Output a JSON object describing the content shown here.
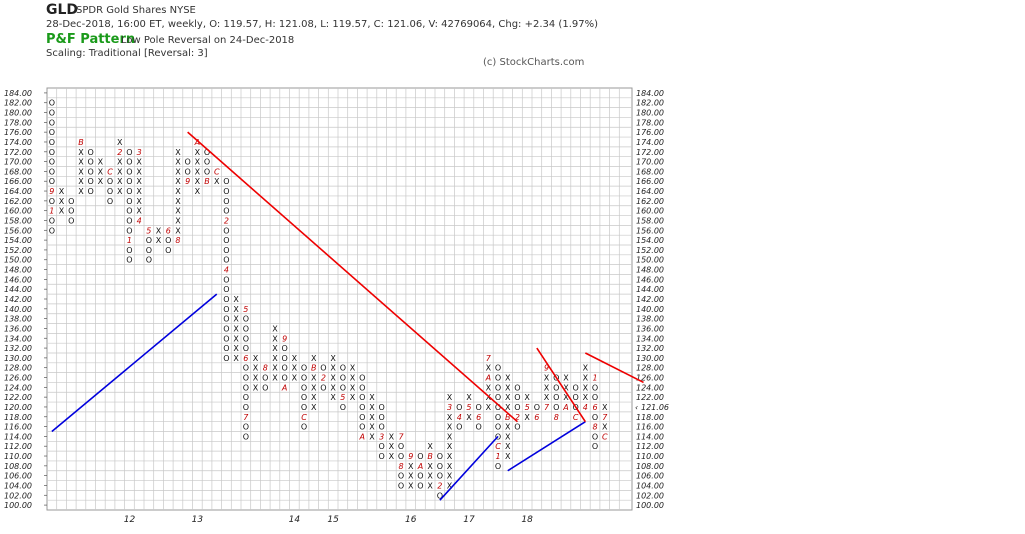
{
  "header": {
    "symbol": "GLD",
    "name": "SPDR Gold Shares  NYSE",
    "quote": "28-Dec-2018, 16:00 ET, weekly, O: 119.57, H: 121.08, L: 119.57, C: 121.06, V: 42769064, Chg: +2.34 (1.97%)",
    "pattern_title": "P&F Pattern",
    "pattern_signal": "Low Pole Reversal on 24-Dec-2018",
    "scaling": "Scaling: Traditional [Reversal: 3]",
    "copyright": "(c) StockCharts.com"
  },
  "chart_data": {
    "type": "point-and-figure",
    "title": "GLD",
    "box_size": 2,
    "reversal": 3,
    "ylim": [
      100,
      184
    ],
    "y_ticks": [
      100,
      102,
      104,
      106,
      108,
      110,
      112,
      114,
      116,
      118,
      120,
      122,
      124,
      126,
      128,
      130,
      132,
      134,
      136,
      138,
      140,
      142,
      144,
      146,
      148,
      150,
      152,
      154,
      156,
      158,
      160,
      162,
      164,
      166,
      168,
      170,
      172,
      174,
      176,
      178,
      180,
      182,
      184
    ],
    "current_price_label": "121.06",
    "current_price_left": "120.00",
    "year_labels": [
      {
        "label": "12",
        "col": 8
      },
      {
        "label": "13",
        "col": 15
      },
      {
        "label": "14",
        "col": 25
      },
      {
        "label": "15",
        "col": 29
      },
      {
        "label": "16",
        "col": 37
      },
      {
        "label": "17",
        "col": 43
      },
      {
        "label": "18",
        "col": 49
      }
    ],
    "columns": [
      {
        "type": "O",
        "high": 182,
        "low": 156,
        "marks": [
          {
            "price": 164,
            "label": "9"
          },
          {
            "price": 160,
            "label": "1"
          }
        ]
      },
      {
        "type": "X",
        "high": 164,
        "low": 160,
        "marks": [
          {
            "price": 158,
            "label": "A"
          }
        ]
      },
      {
        "type": "O",
        "high": 162,
        "low": 158,
        "marks": []
      },
      {
        "type": "X",
        "high": 174,
        "low": 164,
        "marks": [
          {
            "price": 174,
            "label": "B"
          }
        ]
      },
      {
        "type": "O",
        "high": 172,
        "low": 164,
        "marks": []
      },
      {
        "type": "X",
        "high": 170,
        "low": 166,
        "marks": []
      },
      {
        "type": "O",
        "high": 168,
        "low": 162,
        "marks": [
          {
            "price": 168,
            "label": "C"
          }
        ]
      },
      {
        "type": "X",
        "high": 174,
        "low": 164,
        "marks": [
          {
            "price": 172,
            "label": "2"
          }
        ]
      },
      {
        "type": "O",
        "high": 172,
        "low": 150,
        "marks": [
          {
            "price": 154,
            "label": "1"
          }
        ]
      },
      {
        "type": "X",
        "high": 172,
        "low": 158,
        "marks": [
          {
            "price": 172,
            "label": "3"
          },
          {
            "price": 158,
            "label": "4"
          }
        ]
      },
      {
        "type": "O",
        "high": 156,
        "low": 150,
        "marks": [
          {
            "price": 156,
            "label": "5"
          }
        ]
      },
      {
        "type": "X",
        "high": 156,
        "low": 154,
        "marks": []
      },
      {
        "type": "O",
        "high": 156,
        "low": 152,
        "marks": [
          {
            "price": 156,
            "label": "6"
          }
        ]
      },
      {
        "type": "X",
        "high": 172,
        "low": 154,
        "marks": [
          {
            "price": 154,
            "label": "8"
          }
        ]
      },
      {
        "type": "O",
        "high": 170,
        "low": 166,
        "marks": [
          {
            "price": 166,
            "label": "9"
          }
        ]
      },
      {
        "type": "X",
        "high": 174,
        "low": 164,
        "marks": [
          {
            "price": 174,
            "label": "A"
          }
        ]
      },
      {
        "type": "O",
        "high": 172,
        "low": 166,
        "marks": [
          {
            "price": 166,
            "label": "B"
          }
        ]
      },
      {
        "type": "X",
        "high": 168,
        "low": 166,
        "marks": [
          {
            "price": 168,
            "label": "C"
          }
        ]
      },
      {
        "type": "O",
        "high": 166,
        "low": 130,
        "marks": [
          {
            "price": 158,
            "label": "2"
          },
          {
            "price": 148,
            "label": "4"
          }
        ]
      },
      {
        "type": "X",
        "high": 142,
        "low": 130,
        "marks": []
      },
      {
        "type": "O",
        "high": 140,
        "low": 114,
        "marks": [
          {
            "price": 140,
            "label": "5"
          },
          {
            "price": 130,
            "label": "6"
          },
          {
            "price": 118,
            "label": "7"
          }
        ]
      },
      {
        "type": "X",
        "high": 130,
        "low": 124,
        "marks": []
      },
      {
        "type": "O",
        "high": 128,
        "low": 124,
        "marks": [
          {
            "price": 128,
            "label": "8"
          }
        ]
      },
      {
        "type": "X",
        "high": 136,
        "low": 126,
        "marks": []
      },
      {
        "type": "O",
        "high": 134,
        "low": 124,
        "marks": [
          {
            "price": 134,
            "label": "9"
          },
          {
            "price": 124,
            "label": "A"
          }
        ]
      },
      {
        "type": "X",
        "high": 130,
        "low": 126,
        "marks": []
      },
      {
        "type": "O",
        "high": 128,
        "low": 116,
        "marks": [
          {
            "price": 118,
            "label": "C"
          }
        ]
      },
      {
        "type": "X",
        "high": 130,
        "low": 120,
        "marks": [
          {
            "price": 128,
            "label": "B"
          },
          {
            "price": 118,
            "label": "1"
          }
        ]
      },
      {
        "type": "O",
        "high": 128,
        "low": 124,
        "marks": [
          {
            "price": 130,
            "label": "3"
          },
          {
            "price": 126,
            "label": "2"
          }
        ]
      },
      {
        "type": "X",
        "high": 130,
        "low": 122,
        "marks": []
      },
      {
        "type": "O",
        "high": 128,
        "low": 120,
        "marks": [
          {
            "price": 122,
            "label": "5"
          }
        ]
      },
      {
        "type": "X",
        "high": 128,
        "low": 122,
        "marks": []
      },
      {
        "type": "O",
        "high": 126,
        "low": 114,
        "marks": [
          {
            "price": 114,
            "label": "A"
          }
        ]
      },
      {
        "type": "X",
        "high": 122,
        "low": 114,
        "marks": []
      },
      {
        "type": "O",
        "high": 120,
        "low": 110,
        "marks": [
          {
            "price": 114,
            "label": "3"
          }
        ]
      },
      {
        "type": "X",
        "high": 114,
        "low": 110,
        "marks": []
      },
      {
        "type": "O",
        "high": 114,
        "low": 104,
        "marks": [
          {
            "price": 114,
            "label": "7"
          },
          {
            "price": 108,
            "label": "8"
          }
        ]
      },
      {
        "type": "X",
        "high": 110,
        "low": 104,
        "marks": [
          {
            "price": 110,
            "label": "9"
          }
        ]
      },
      {
        "type": "O",
        "high": 110,
        "low": 104,
        "marks": [
          {
            "price": 108,
            "label": "A"
          }
        ]
      },
      {
        "type": "X",
        "high": 112,
        "low": 104,
        "marks": [
          {
            "price": 110,
            "label": "B"
          }
        ]
      },
      {
        "type": "O",
        "high": 110,
        "low": 102,
        "marks": [
          {
            "price": 104,
            "label": "2"
          }
        ]
      },
      {
        "type": "X",
        "high": 122,
        "low": 104,
        "marks": [
          {
            "price": 120,
            "label": "3"
          }
        ]
      },
      {
        "type": "O",
        "high": 120,
        "low": 116,
        "marks": [
          {
            "price": 118,
            "label": "4"
          }
        ]
      },
      {
        "type": "X",
        "high": 122,
        "low": 118,
        "marks": [
          {
            "price": 120,
            "label": "5"
          }
        ]
      },
      {
        "type": "O",
        "high": 120,
        "low": 116,
        "marks": [
          {
            "price": 118,
            "label": "6"
          }
        ]
      },
      {
        "type": "X",
        "high": 130,
        "low": 120,
        "marks": [
          {
            "price": 130,
            "label": "7"
          },
          {
            "price": 126,
            "label": "A"
          }
        ]
      },
      {
        "type": "O",
        "high": 128,
        "low": 108,
        "marks": [
          {
            "price": 112,
            "label": "C"
          },
          {
            "price": 110,
            "label": "1"
          }
        ]
      },
      {
        "type": "X",
        "high": 126,
        "low": 110,
        "marks": [
          {
            "price": 118,
            "label": "B"
          }
        ]
      },
      {
        "type": "O",
        "high": 124,
        "low": 116,
        "marks": [
          {
            "price": 118,
            "label": "2"
          }
        ]
      },
      {
        "type": "X",
        "high": 122,
        "low": 118,
        "marks": [
          {
            "price": 120,
            "label": "5"
          }
        ]
      },
      {
        "type": "O",
        "high": 120,
        "low": 118,
        "marks": [
          {
            "price": 118,
            "label": "6"
          }
        ]
      },
      {
        "type": "X",
        "high": 128,
        "low": 120,
        "marks": [
          {
            "price": 128,
            "label": "9"
          },
          {
            "price": 120,
            "label": "7"
          }
        ]
      },
      {
        "type": "O",
        "high": 126,
        "low": 118,
        "marks": [
          {
            "price": 118,
            "label": "8"
          }
        ]
      },
      {
        "type": "X",
        "high": 126,
        "low": 120,
        "marks": [
          {
            "price": 120,
            "label": "A"
          }
        ]
      },
      {
        "type": "O",
        "high": 124,
        "low": 118,
        "marks": [
          {
            "price": 118,
            "label": "C"
          }
        ]
      },
      {
        "type": "X",
        "high": 128,
        "low": 120,
        "marks": [
          {
            "price": 120,
            "label": "4"
          }
        ]
      },
      {
        "type": "O",
        "high": 126,
        "low": 112,
        "marks": [
          {
            "price": 126,
            "label": "1"
          },
          {
            "price": 120,
            "label": "6"
          },
          {
            "price": 116,
            "label": "8"
          }
        ]
      },
      {
        "type": "X",
        "high": 120,
        "low": 114,
        "marks": [
          {
            "price": 118,
            "label": "7"
          },
          {
            "price": 114,
            "label": "C"
          }
        ]
      }
    ],
    "trend_lines": [
      {
        "color": "#0000dd",
        "kind": "support",
        "from": {
          "col": 0,
          "price": 115
        },
        "to": {
          "col": 17,
          "price": 143
        }
      },
      {
        "color": "#ee0000",
        "kind": "resistance",
        "from": {
          "col": 14,
          "price": 176
        },
        "to": {
          "col": 48,
          "price": 117
        }
      },
      {
        "color": "#0000dd",
        "kind": "support",
        "from": {
          "col": 40,
          "price": 101
        },
        "to": {
          "col": 46,
          "price": 114
        }
      },
      {
        "color": "#0000dd",
        "kind": "support",
        "from": {
          "col": 47,
          "price": 107
        },
        "to": {
          "col": 55,
          "price": 117
        }
      },
      {
        "color": "#ee0000",
        "kind": "resistance",
        "from": {
          "col": 50,
          "price": 132
        },
        "to": {
          "col": 55,
          "price": 117
        }
      },
      {
        "color": "#ee0000",
        "kind": "resistance",
        "from": {
          "col": 55,
          "price": 131
        },
        "to": {
          "col": 61,
          "price": 125
        }
      }
    ],
    "colors": {
      "x": "#111111",
      "o": "#111111",
      "month": "#c00000",
      "latest": "#00aa00",
      "grid": "#c8c8c8"
    }
  }
}
